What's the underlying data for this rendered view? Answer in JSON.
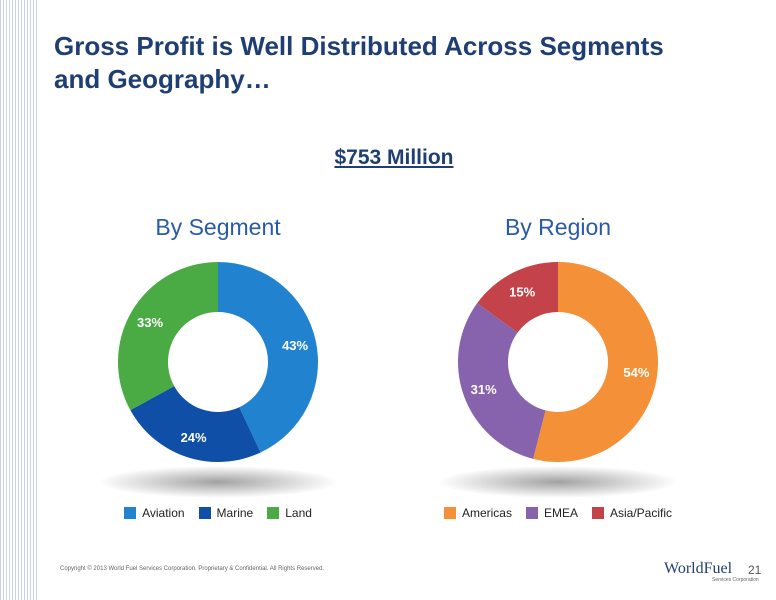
{
  "slide": {
    "title_line1": "Gross Profit is Well Distributed Across Segments",
    "title_line2": "and Geography…",
    "total": "$753 Million",
    "copyright": "Copyright © 2013 World Fuel Services Corporation. Proprietary & Confidential. All Rights Reserved.",
    "logo_text": "WorldFuel",
    "logo_sub": "Services Corporation",
    "page_number": "21"
  },
  "chart_data": [
    {
      "type": "pie",
      "donut": true,
      "title": "By Segment",
      "categories": [
        "Aviation",
        "Marine",
        "Land"
      ],
      "values": [
        43,
        24,
        33
      ],
      "labels": [
        "43%",
        "24%",
        "33%"
      ],
      "colors": [
        "#2183d0",
        "#0f4fa7",
        "#4aaa44"
      ],
      "legend": "bottom"
    },
    {
      "type": "pie",
      "donut": true,
      "title": "By Region",
      "categories": [
        "Americas",
        "EMEA",
        "Asia/Pacific"
      ],
      "values": [
        54,
        31,
        15
      ],
      "labels": [
        "54%",
        "31%",
        "15%"
      ],
      "colors": [
        "#f39038",
        "#8863ad",
        "#c4434a"
      ],
      "legend": "bottom"
    }
  ]
}
